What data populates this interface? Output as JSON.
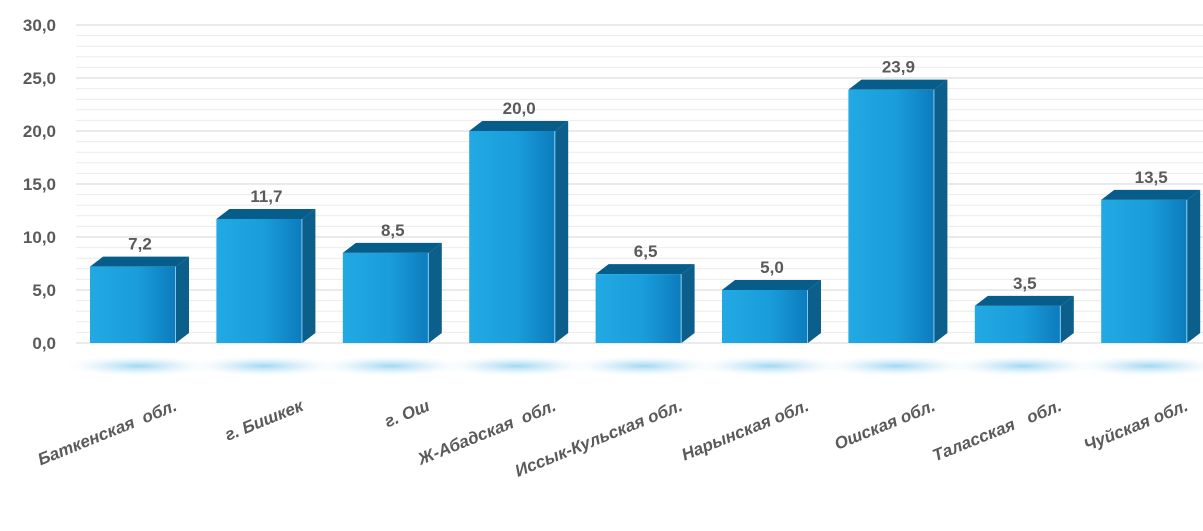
{
  "chart_data": {
    "type": "bar",
    "categories": [
      "Баткенская  обл.",
      "г. Бишкек",
      "г. Ош",
      "Ж-Абадская  обл.",
      "Иссык-Кульская обл.",
      "Нарынская обл.",
      "Ошская обл.",
      "Таласская   обл.",
      "Чуйская обл."
    ],
    "values": [
      7.2,
      11.7,
      8.5,
      20.0,
      6.5,
      5.0,
      23.9,
      3.5,
      13.5
    ],
    "value_labels": [
      "7,2",
      "11,7",
      "8,5",
      "20,0",
      "6,5",
      "5,0",
      "23,9",
      "3,5",
      "13,5"
    ],
    "yticks": [
      0,
      5,
      10,
      15,
      20,
      25,
      30
    ],
    "ytick_labels": [
      "0,0",
      "5,0",
      "10,0",
      "15,0",
      "20,0",
      "25,0",
      "30,0"
    ],
    "ylim": [
      0,
      30
    ],
    "grid": true,
    "legend": false,
    "colors": {
      "bar_front": "#1a9fdc",
      "bar_front_dark": "#0b78ba",
      "bar_side": "#0b5f8a",
      "bar_top": "#075d8a",
      "grid": "#dcdcdc",
      "label": "#5a5a5a"
    }
  }
}
